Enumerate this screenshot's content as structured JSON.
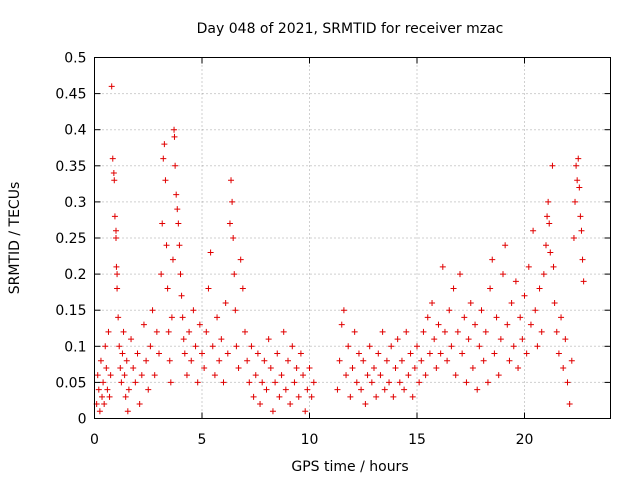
{
  "chart_data": {
    "type": "scatter",
    "title": "Day 048 of 2021, SRMTID for receiver mzac",
    "xlabel": "GPS time / hours",
    "ylabel": "SRMTID / TECUs",
    "xlim": [
      0,
      24
    ],
    "ylim": [
      0,
      0.5
    ],
    "xticks": [
      0,
      5,
      10,
      15,
      20
    ],
    "xtick_labels": [
      "0",
      "5",
      "10",
      "15",
      "20"
    ],
    "yticks": [
      0,
      0.05,
      0.1,
      0.15,
      0.2,
      0.25,
      0.3,
      0.35,
      0.4,
      0.45,
      0.5
    ],
    "ytick_labels": [
      "0",
      "0.05",
      "0.1",
      "0.15",
      "0.2",
      "0.25",
      "0.3",
      "0.35",
      "0.4",
      "0.45",
      "0.5"
    ],
    "grid": true,
    "marker": "+",
    "color": "#e00000",
    "series": [
      {
        "name": "SRMTID",
        "points": [
          [
            0.1,
            0.02
          ],
          [
            0.15,
            0.06
          ],
          [
            0.2,
            0.04
          ],
          [
            0.25,
            0.01
          ],
          [
            0.3,
            0.08
          ],
          [
            0.35,
            0.03
          ],
          [
            0.4,
            0.05
          ],
          [
            0.45,
            0.02
          ],
          [
            0.5,
            0.1
          ],
          [
            0.55,
            0.07
          ],
          [
            0.6,
            0.04
          ],
          [
            0.65,
            0.12
          ],
          [
            0.7,
            0.03
          ],
          [
            0.75,
            0.06
          ],
          [
            0.8,
            0.46
          ],
          [
            0.85,
            0.36
          ],
          [
            0.9,
            0.34
          ],
          [
            0.92,
            0.33
          ],
          [
            0.95,
            0.28
          ],
          [
            1.0,
            0.26
          ],
          [
            1.0,
            0.25
          ],
          [
            1.02,
            0.21
          ],
          [
            1.05,
            0.18
          ],
          [
            1.05,
            0.2
          ],
          [
            1.1,
            0.14
          ],
          [
            1.15,
            0.1
          ],
          [
            1.2,
            0.07
          ],
          [
            1.25,
            0.05
          ],
          [
            1.3,
            0.09
          ],
          [
            1.35,
            0.12
          ],
          [
            1.4,
            0.06
          ],
          [
            1.45,
            0.03
          ],
          [
            1.5,
            0.08
          ],
          [
            1.55,
            0.01
          ],
          [
            1.6,
            0.04
          ],
          [
            1.7,
            0.11
          ],
          [
            1.8,
            0.07
          ],
          [
            1.9,
            0.05
          ],
          [
            2.0,
            0.09
          ],
          [
            2.1,
            0.02
          ],
          [
            2.2,
            0.06
          ],
          [
            2.3,
            0.13
          ],
          [
            2.4,
            0.08
          ],
          [
            2.5,
            0.04
          ],
          [
            2.6,
            0.1
          ],
          [
            2.7,
            0.15
          ],
          [
            2.8,
            0.06
          ],
          [
            2.9,
            0.12
          ],
          [
            3.0,
            0.09
          ],
          [
            3.1,
            0.2
          ],
          [
            3.15,
            0.27
          ],
          [
            3.2,
            0.36
          ],
          [
            3.25,
            0.38
          ],
          [
            3.3,
            0.33
          ],
          [
            3.35,
            0.24
          ],
          [
            3.4,
            0.18
          ],
          [
            3.45,
            0.12
          ],
          [
            3.5,
            0.08
          ],
          [
            3.55,
            0.05
          ],
          [
            3.6,
            0.14
          ],
          [
            3.65,
            0.22
          ],
          [
            3.7,
            0.4
          ],
          [
            3.72,
            0.39
          ],
          [
            3.75,
            0.35
          ],
          [
            3.8,
            0.31
          ],
          [
            3.85,
            0.29
          ],
          [
            3.9,
            0.27
          ],
          [
            3.95,
            0.24
          ],
          [
            4.0,
            0.2
          ],
          [
            4.05,
            0.17
          ],
          [
            4.1,
            0.14
          ],
          [
            4.15,
            0.11
          ],
          [
            4.2,
            0.09
          ],
          [
            4.3,
            0.06
          ],
          [
            4.4,
            0.12
          ],
          [
            4.5,
            0.08
          ],
          [
            4.6,
            0.15
          ],
          [
            4.7,
            0.1
          ],
          [
            4.8,
            0.05
          ],
          [
            4.9,
            0.13
          ],
          [
            5.0,
            0.09
          ],
          [
            5.1,
            0.07
          ],
          [
            5.2,
            0.12
          ],
          [
            5.3,
            0.18
          ],
          [
            5.4,
            0.23
          ],
          [
            5.5,
            0.1
          ],
          [
            5.6,
            0.06
          ],
          [
            5.7,
            0.14
          ],
          [
            5.8,
            0.08
          ],
          [
            5.9,
            0.11
          ],
          [
            6.0,
            0.05
          ],
          [
            6.1,
            0.16
          ],
          [
            6.2,
            0.09
          ],
          [
            6.3,
            0.27
          ],
          [
            6.35,
            0.33
          ],
          [
            6.4,
            0.3
          ],
          [
            6.45,
            0.25
          ],
          [
            6.5,
            0.2
          ],
          [
            6.55,
            0.15
          ],
          [
            6.6,
            0.1
          ],
          [
            6.7,
            0.07
          ],
          [
            6.8,
            0.22
          ],
          [
            6.9,
            0.18
          ],
          [
            7.0,
            0.12
          ],
          [
            7.1,
            0.08
          ],
          [
            7.2,
            0.05
          ],
          [
            7.3,
            0.1
          ],
          [
            7.4,
            0.03
          ],
          [
            7.5,
            0.06
          ],
          [
            7.6,
            0.09
          ],
          [
            7.7,
            0.02
          ],
          [
            7.8,
            0.05
          ],
          [
            7.9,
            0.08
          ],
          [
            8.0,
            0.04
          ],
          [
            8.1,
            0.11
          ],
          [
            8.2,
            0.07
          ],
          [
            8.3,
            0.01
          ],
          [
            8.4,
            0.05
          ],
          [
            8.5,
            0.09
          ],
          [
            8.6,
            0.03
          ],
          [
            8.7,
            0.06
          ],
          [
            8.8,
            0.12
          ],
          [
            8.9,
            0.04
          ],
          [
            9.0,
            0.08
          ],
          [
            9.1,
            0.02
          ],
          [
            9.2,
            0.1
          ],
          [
            9.3,
            0.05
          ],
          [
            9.4,
            0.07
          ],
          [
            9.5,
            0.03
          ],
          [
            9.6,
            0.09
          ],
          [
            9.7,
            0.06
          ],
          [
            9.8,
            0.01
          ],
          [
            9.9,
            0.04
          ],
          [
            10.0,
            0.07
          ],
          [
            10.1,
            0.03
          ],
          [
            10.2,
            0.05
          ],
          [
            11.3,
            0.04
          ],
          [
            11.4,
            0.08
          ],
          [
            11.5,
            0.13
          ],
          [
            11.6,
            0.15
          ],
          [
            11.7,
            0.06
          ],
          [
            11.8,
            0.1
          ],
          [
            11.9,
            0.03
          ],
          [
            12.0,
            0.07
          ],
          [
            12.1,
            0.12
          ],
          [
            12.2,
            0.05
          ],
          [
            12.3,
            0.09
          ],
          [
            12.4,
            0.04
          ],
          [
            12.5,
            0.08
          ],
          [
            12.6,
            0.02
          ],
          [
            12.7,
            0.06
          ],
          [
            12.8,
            0.1
          ],
          [
            12.9,
            0.05
          ],
          [
            13.0,
            0.07
          ],
          [
            13.1,
            0.03
          ],
          [
            13.2,
            0.09
          ],
          [
            13.3,
            0.06
          ],
          [
            13.4,
            0.12
          ],
          [
            13.5,
            0.04
          ],
          [
            13.6,
            0.08
          ],
          [
            13.7,
            0.05
          ],
          [
            13.8,
            0.1
          ],
          [
            13.9,
            0.03
          ],
          [
            14.0,
            0.07
          ],
          [
            14.1,
            0.11
          ],
          [
            14.2,
            0.05
          ],
          [
            14.3,
            0.08
          ],
          [
            14.4,
            0.04
          ],
          [
            14.5,
            0.12
          ],
          [
            14.6,
            0.06
          ],
          [
            14.7,
            0.09
          ],
          [
            14.8,
            0.03
          ],
          [
            14.9,
            0.07
          ],
          [
            15.0,
            0.1
          ],
          [
            15.1,
            0.05
          ],
          [
            15.2,
            0.08
          ],
          [
            15.3,
            0.12
          ],
          [
            15.4,
            0.06
          ],
          [
            15.5,
            0.14
          ],
          [
            15.6,
            0.09
          ],
          [
            15.7,
            0.16
          ],
          [
            15.8,
            0.11
          ],
          [
            15.9,
            0.07
          ],
          [
            16.0,
            0.13
          ],
          [
            16.1,
            0.09
          ],
          [
            16.2,
            0.21
          ],
          [
            16.3,
            0.12
          ],
          [
            16.4,
            0.08
          ],
          [
            16.5,
            0.15
          ],
          [
            16.6,
            0.1
          ],
          [
            16.7,
            0.18
          ],
          [
            16.8,
            0.06
          ],
          [
            16.9,
            0.12
          ],
          [
            17.0,
            0.2
          ],
          [
            17.1,
            0.09
          ],
          [
            17.2,
            0.14
          ],
          [
            17.3,
            0.05
          ],
          [
            17.4,
            0.11
          ],
          [
            17.5,
            0.16
          ],
          [
            17.6,
            0.07
          ],
          [
            17.7,
            0.13
          ],
          [
            17.8,
            0.04
          ],
          [
            17.9,
            0.1
          ],
          [
            18.0,
            0.15
          ],
          [
            18.1,
            0.08
          ],
          [
            18.2,
            0.12
          ],
          [
            18.3,
            0.05
          ],
          [
            18.4,
            0.18
          ],
          [
            18.5,
            0.22
          ],
          [
            18.6,
            0.09
          ],
          [
            18.7,
            0.14
          ],
          [
            18.8,
            0.06
          ],
          [
            18.9,
            0.11
          ],
          [
            19.0,
            0.2
          ],
          [
            19.1,
            0.24
          ],
          [
            19.2,
            0.13
          ],
          [
            19.3,
            0.08
          ],
          [
            19.4,
            0.16
          ],
          [
            19.5,
            0.1
          ],
          [
            19.6,
            0.19
          ],
          [
            19.7,
            0.07
          ],
          [
            19.8,
            0.14
          ],
          [
            19.9,
            0.11
          ],
          [
            20.0,
            0.17
          ],
          [
            20.1,
            0.09
          ],
          [
            20.2,
            0.21
          ],
          [
            20.3,
            0.13
          ],
          [
            20.4,
            0.26
          ],
          [
            20.5,
            0.15
          ],
          [
            20.6,
            0.1
          ],
          [
            20.7,
            0.18
          ],
          [
            20.8,
            0.12
          ],
          [
            20.9,
            0.2
          ],
          [
            21.0,
            0.24
          ],
          [
            21.05,
            0.28
          ],
          [
            21.1,
            0.3
          ],
          [
            21.15,
            0.27
          ],
          [
            21.2,
            0.23
          ],
          [
            21.3,
            0.35
          ],
          [
            21.35,
            0.21
          ],
          [
            21.4,
            0.16
          ],
          [
            21.5,
            0.12
          ],
          [
            21.6,
            0.09
          ],
          [
            21.7,
            0.14
          ],
          [
            21.8,
            0.07
          ],
          [
            21.9,
            0.11
          ],
          [
            22.0,
            0.05
          ],
          [
            22.1,
            0.02
          ],
          [
            22.2,
            0.08
          ],
          [
            22.3,
            0.25
          ],
          [
            22.35,
            0.3
          ],
          [
            22.4,
            0.35
          ],
          [
            22.45,
            0.33
          ],
          [
            22.5,
            0.36
          ],
          [
            22.55,
            0.32
          ],
          [
            22.6,
            0.28
          ],
          [
            22.65,
            0.26
          ],
          [
            22.7,
            0.22
          ],
          [
            22.75,
            0.19
          ]
        ]
      }
    ]
  }
}
